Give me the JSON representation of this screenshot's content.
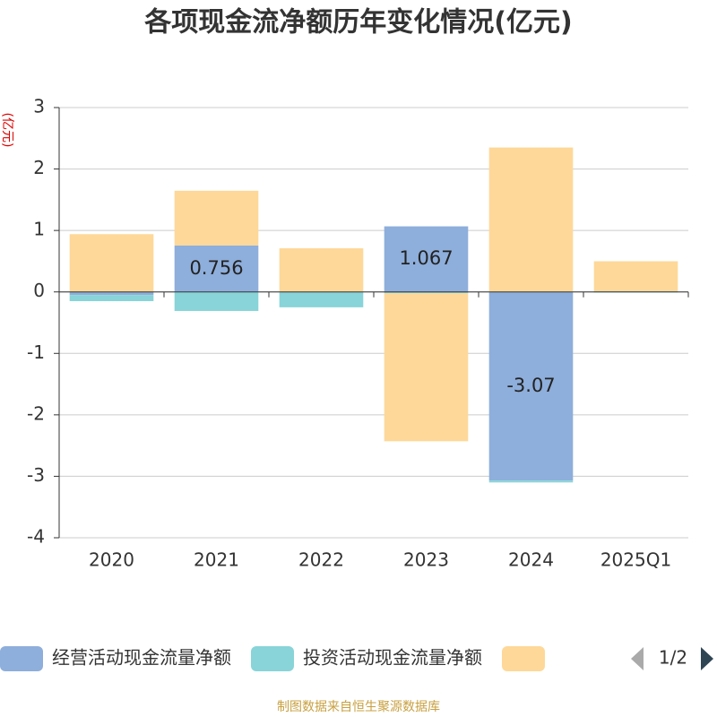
{
  "chart_data": {
    "type": "bar",
    "stacked": true,
    "title": "各项现金流净额历年变化情况(亿元)",
    "y_label": "(亿元)",
    "categories": [
      "2020",
      "2021",
      "2022",
      "2023",
      "2024",
      "2025Q1"
    ],
    "series": [
      {
        "name": "经营活动现金流量净额",
        "color": "#8eaedb",
        "values": [
          -0.05,
          0.756,
          -0.01,
          1.067,
          -3.07,
          0.009
        ],
        "value_labels": [
          null,
          "0.756",
          null,
          "1.067",
          "-3.07",
          null
        ]
      },
      {
        "name": "投资活动现金流量净额",
        "color": "#88d4d8",
        "values": [
          -0.1,
          -0.31,
          -0.24,
          -0.02,
          -0.03,
          -0.01
        ]
      },
      {
        "color": "#fed899",
        "values": [
          0.94,
          0.89,
          0.71,
          -2.41,
          2.35,
          0.49
        ]
      }
    ],
    "ylim": [
      -4,
      3
    ],
    "yticks": [
      -4,
      -3,
      -2,
      -1,
      0,
      1,
      2,
      3
    ],
    "grid": true,
    "legend_page": "1/2",
    "source": "制图数据来自恒生聚源数据库"
  }
}
